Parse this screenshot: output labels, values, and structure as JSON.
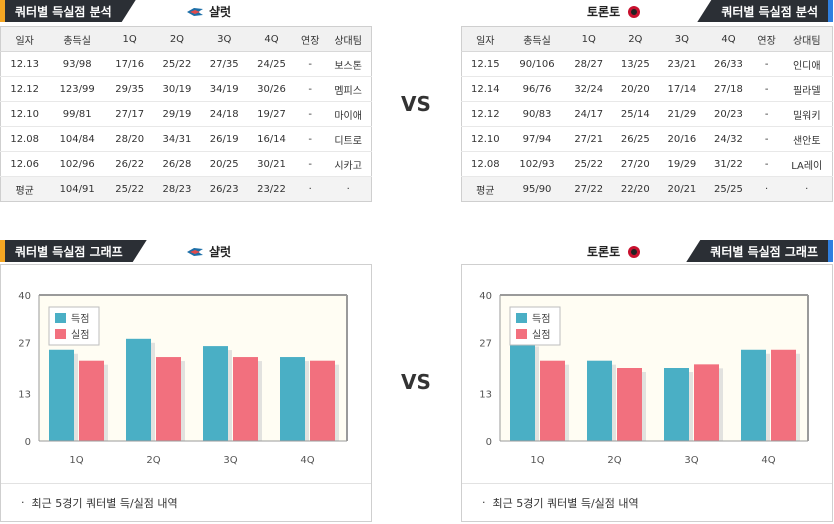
{
  "left": {
    "table_tab": "쿼터별 득실점 분석",
    "chart_tab": "쿼터별 득실점 그래프",
    "team": "샬럿",
    "columns": [
      "일자",
      "총득실",
      "1Q",
      "2Q",
      "3Q",
      "4Q",
      "연장",
      "상대팀"
    ],
    "rows": [
      [
        "12.13",
        "93/98",
        "17/16",
        "25/22",
        "27/35",
        "24/25",
        "-",
        "보스톤"
      ],
      [
        "12.12",
        "123/99",
        "29/35",
        "30/19",
        "34/19",
        "30/26",
        "-",
        "멤피스"
      ],
      [
        "12.10",
        "99/81",
        "27/17",
        "29/19",
        "24/18",
        "19/27",
        "-",
        "마이애"
      ],
      [
        "12.08",
        "104/84",
        "28/20",
        "34/31",
        "26/19",
        "16/14",
        "-",
        "디트로"
      ],
      [
        "12.06",
        "102/96",
        "26/22",
        "26/28",
        "20/25",
        "30/21",
        "-",
        "시카고"
      ]
    ],
    "avg": [
      "평균",
      "104/91",
      "25/22",
      "28/23",
      "26/23",
      "23/22",
      "·",
      "·"
    ],
    "note": "최근 5경기 쿼터별 득/실점 내역"
  },
  "right": {
    "table_tab": "쿼터별 득실점 분석",
    "chart_tab": "쿼터별 득실점 그래프",
    "team": "토론토",
    "columns": [
      "일자",
      "총득실",
      "1Q",
      "2Q",
      "3Q",
      "4Q",
      "연장",
      "상대팀"
    ],
    "rows": [
      [
        "12.15",
        "90/106",
        "28/27",
        "13/25",
        "23/21",
        "26/33",
        "-",
        "인디애"
      ],
      [
        "12.14",
        "96/76",
        "32/24",
        "20/20",
        "17/14",
        "27/18",
        "-",
        "필라델"
      ],
      [
        "12.12",
        "90/83",
        "24/17",
        "25/14",
        "21/29",
        "20/23",
        "-",
        "밀워키"
      ],
      [
        "12.10",
        "97/94",
        "27/21",
        "26/25",
        "20/16",
        "24/32",
        "-",
        "샌안토"
      ],
      [
        "12.08",
        "102/93",
        "25/22",
        "27/20",
        "19/29",
        "31/22",
        "-",
        "LA레이"
      ]
    ],
    "avg": [
      "평균",
      "95/90",
      "27/22",
      "22/20",
      "20/21",
      "25/25",
      "·",
      "·"
    ],
    "note": "최근 5경기 쿼터별 득/실점 내역"
  },
  "vs_label": "VS",
  "colors": {
    "score": "#4aafc5",
    "allowed": "#f2707e",
    "tab_bg": "#2b2f35",
    "accent_left": "#f5a623",
    "accent_right": "#2f7fe0"
  },
  "chart_data": [
    {
      "type": "bar",
      "categories": [
        "1Q",
        "2Q",
        "3Q",
        "4Q"
      ],
      "series": [
        {
          "name": "득점",
          "values": [
            25,
            28,
            26,
            23
          ]
        },
        {
          "name": "실점",
          "values": [
            22,
            23,
            23,
            22
          ]
        }
      ],
      "ylim": [
        0,
        40
      ],
      "yticks": [
        0,
        13,
        27,
        40
      ],
      "legend": "top-left",
      "grid": false
    },
    {
      "type": "bar",
      "categories": [
        "1Q",
        "2Q",
        "3Q",
        "4Q"
      ],
      "series": [
        {
          "name": "득점",
          "values": [
            27,
            22,
            20,
            25
          ]
        },
        {
          "name": "실점",
          "values": [
            22,
            20,
            21,
            25
          ]
        }
      ],
      "ylim": [
        0,
        40
      ],
      "yticks": [
        0,
        13,
        27,
        40
      ],
      "legend": "top-left",
      "grid": false
    }
  ]
}
